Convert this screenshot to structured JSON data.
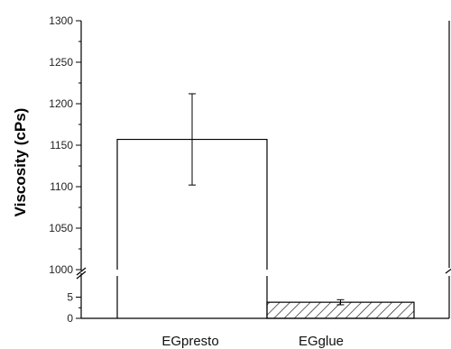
{
  "chart_data": {
    "type": "bar",
    "title": "",
    "xlabel": "",
    "ylabel": "Viscosity (cPs)",
    "categories": [
      "EGpresto",
      "EGglue"
    ],
    "values": [
      1157,
      3.8
    ],
    "errors": [
      55,
      0.6
    ],
    "bar_fills": [
      "open",
      "hatched"
    ],
    "y_axis_break": true,
    "y_segments": [
      {
        "ylim": [
          0,
          10
        ],
        "ticks": [
          0,
          5
        ]
      },
      {
        "ylim": [
          1000,
          1300
        ],
        "ticks": [
          1000,
          1050,
          1100,
          1150,
          1200,
          1250,
          1300
        ]
      }
    ],
    "grid": false,
    "legend": "none"
  }
}
